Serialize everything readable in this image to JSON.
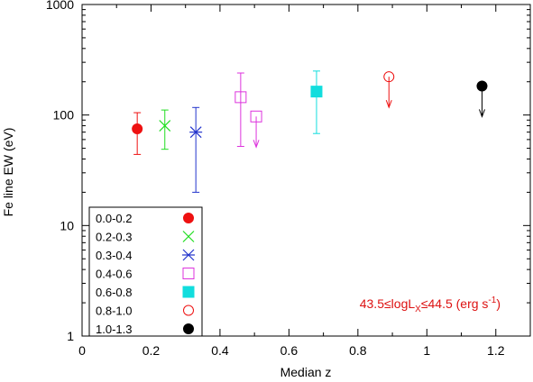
{
  "chart_data": {
    "type": "scatter",
    "xlabel": "Median z",
    "ylabel": "Fe line EW (eV)",
    "xlim": [
      0,
      1.3
    ],
    "ylim": [
      1,
      1000
    ],
    "yscale": "log",
    "x_ticks": [
      0,
      0.2,
      0.4,
      0.6,
      0.8,
      1,
      1.2
    ],
    "x_tick_labels": [
      "0",
      "0.2",
      "0.4",
      "0.6",
      "0.8",
      "1",
      "1.2"
    ],
    "y_ticks": [
      1,
      10,
      100,
      1000
    ],
    "y_tick_labels": [
      "1",
      "10",
      "100",
      "1000"
    ],
    "grid": false,
    "legend_position": "bottom-left",
    "annotation": {
      "prefix": "43.5≤logL",
      "subscript": "X",
      "middle": "≤44.5 (erg s",
      "superscript": "-1",
      "suffix": ")",
      "color": "#dd1111"
    },
    "series": [
      {
        "name": "0.0-0.2",
        "marker": "filled-circle",
        "color": "#ee1111",
        "points": [
          {
            "x": 0.16,
            "y": 75,
            "err_low": 44,
            "err_high": 105
          }
        ]
      },
      {
        "name": "0.2-0.3",
        "marker": "x",
        "color": "#22dd22",
        "points": [
          {
            "x": 0.24,
            "y": 80,
            "err_low": 49,
            "err_high": 111
          }
        ]
      },
      {
        "name": "0.3-0.4",
        "marker": "asterisk",
        "color": "#2233cc",
        "points": [
          {
            "x": 0.33,
            "y": 70,
            "err_low": 20,
            "err_high": 117
          }
        ]
      },
      {
        "name": "0.4-0.6",
        "marker": "open-square",
        "color": "#dd33dd",
        "points": [
          {
            "x": 0.46,
            "y": 145,
            "err_low": 52,
            "err_high": 240
          },
          {
            "x": 0.505,
            "y": 97,
            "upper_limit": true
          }
        ]
      },
      {
        "name": "0.6-0.8",
        "marker": "filled-square",
        "color": "#11dddd",
        "points": [
          {
            "x": 0.68,
            "y": 163,
            "err_low": 68,
            "err_high": 250
          }
        ]
      },
      {
        "name": "0.8-1.0",
        "marker": "open-circle",
        "color": "#ee1111",
        "points": [
          {
            "x": 0.89,
            "y": 222,
            "upper_limit": true
          }
        ]
      },
      {
        "name": "1.0-1.3",
        "marker": "filled-circle",
        "color": "#000000",
        "points": [
          {
            "x": 1.16,
            "y": 183,
            "upper_limit": true
          }
        ]
      }
    ]
  }
}
